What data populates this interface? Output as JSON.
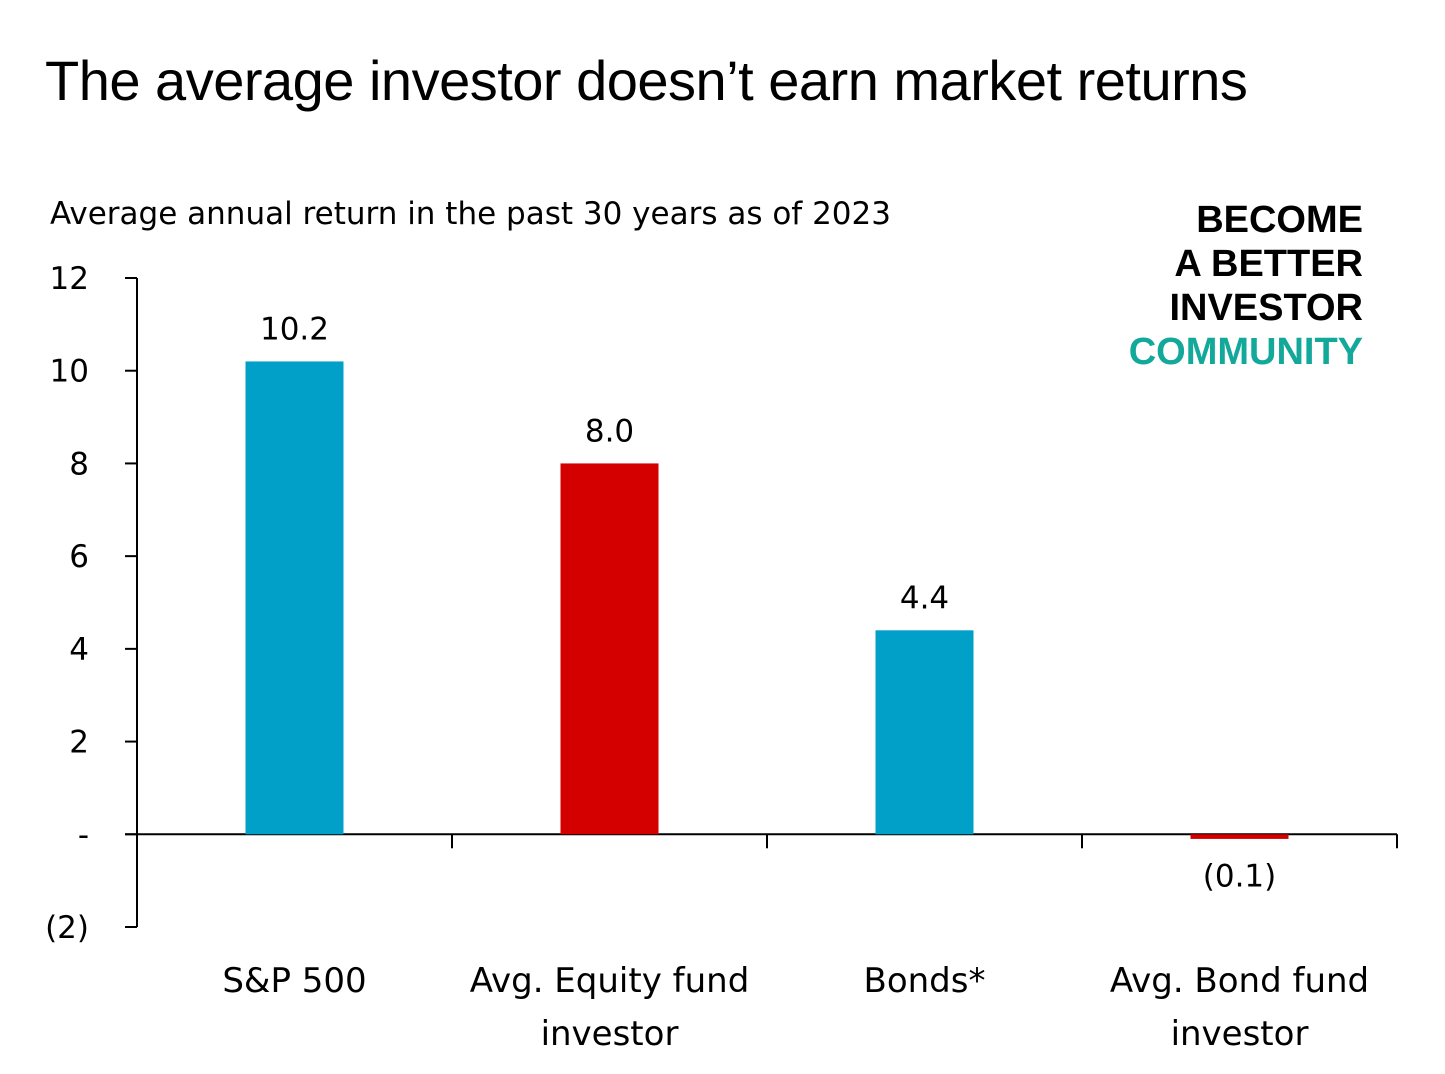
{
  "title": "The average investor doesn’t earn market returns",
  "subtitle": "Average annual return in the past 30 years as of 2023",
  "brand": {
    "line1": "BECOME",
    "line2": "A BETTER",
    "line3": "INVESTOR",
    "line4": "COMMUNITY",
    "accent_color": "#12a89a"
  },
  "chart_data": {
    "type": "bar",
    "categories": [
      [
        "S&P 500"
      ],
      [
        "Avg. Equity fund",
        "investor"
      ],
      [
        "Bonds*"
      ],
      [
        "Avg. Bond fund",
        "investor"
      ]
    ],
    "values": [
      10.2,
      8.0,
      4.4,
      -0.1
    ],
    "data_labels": [
      "10.2",
      "8.0",
      "4.4",
      "(0.1)"
    ],
    "colors": [
      "#00a0c8",
      "#d40000",
      "#00a0c8",
      "#d40000"
    ],
    "ylim": [
      -2,
      12
    ],
    "yticks": [
      12,
      10,
      8,
      6,
      4,
      2,
      0,
      -2
    ],
    "ytick_labels": [
      "12",
      "10",
      "8",
      "6",
      "4",
      "2",
      "-",
      "(2)"
    ],
    "grid": false,
    "legend": "none"
  }
}
